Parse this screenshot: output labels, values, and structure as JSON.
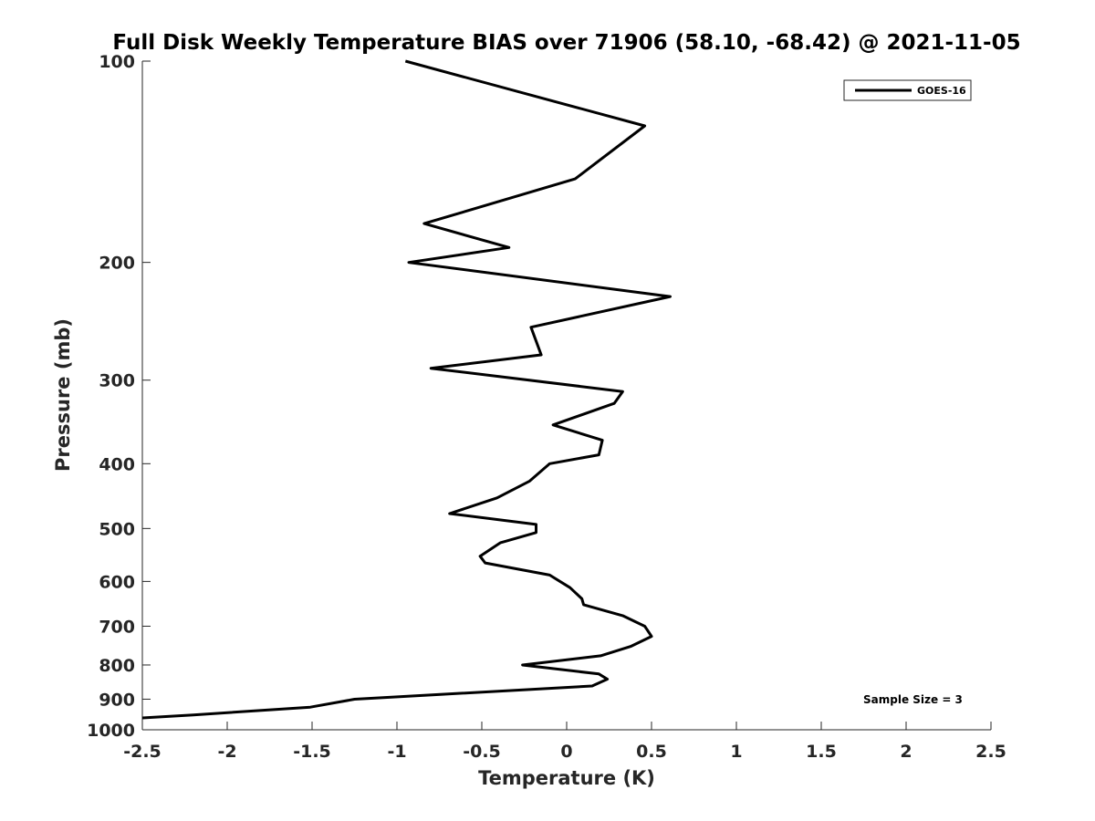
{
  "chart_data": {
    "type": "line",
    "title": "Full Disk Weekly Temperature BIAS over 71906 (58.10, -68.42) @ 2021-11-05",
    "xlabel": "Temperature (K)",
    "ylabel": "Pressure (mb)",
    "xlim": [
      -2.5,
      2.5
    ],
    "ylim": [
      100,
      1000
    ],
    "y_scale": "log",
    "y_direction": "reversed",
    "x_ticks": [
      -2.5,
      -2,
      -1.5,
      -1,
      -0.5,
      0,
      0.5,
      1,
      1.5,
      2,
      2.5
    ],
    "x_tick_labels": [
      "-2.5",
      "-2",
      "-1.5",
      "-1",
      "-0.5",
      "0",
      "0.5",
      "1",
      "1.5",
      "2",
      "2.5"
    ],
    "y_ticks": [
      100,
      200,
      300,
      400,
      500,
      600,
      700,
      800,
      900,
      1000
    ],
    "y_tick_labels": [
      "100",
      "200",
      "300",
      "400",
      "500",
      "600",
      "700",
      "800",
      "900",
      "1000"
    ],
    "grid": false,
    "legend_position": "top-right",
    "series": [
      {
        "name": "GOES-16",
        "color": "#000000",
        "points": [
          {
            "p": 100,
            "t": -0.95
          },
          {
            "p": 125,
            "t": 0.46
          },
          {
            "p": 150,
            "t": 0.05
          },
          {
            "p": 175,
            "t": -0.84
          },
          {
            "p": 190,
            "t": -0.34
          },
          {
            "p": 200,
            "t": -0.93
          },
          {
            "p": 225,
            "t": 0.61
          },
          {
            "p": 250,
            "t": -0.21
          },
          {
            "p": 275,
            "t": -0.15
          },
          {
            "p": 288,
            "t": -0.8
          },
          {
            "p": 312,
            "t": 0.33
          },
          {
            "p": 325,
            "t": 0.28
          },
          {
            "p": 350,
            "t": -0.08
          },
          {
            "p": 369,
            "t": 0.21
          },
          {
            "p": 388,
            "t": 0.19
          },
          {
            "p": 400,
            "t": -0.1
          },
          {
            "p": 425,
            "t": -0.22
          },
          {
            "p": 450,
            "t": -0.41
          },
          {
            "p": 475,
            "t": -0.69
          },
          {
            "p": 493,
            "t": -0.18
          },
          {
            "p": 507,
            "t": -0.18
          },
          {
            "p": 525,
            "t": -0.39
          },
          {
            "p": 550,
            "t": -0.51
          },
          {
            "p": 563,
            "t": -0.48
          },
          {
            "p": 587,
            "t": -0.1
          },
          {
            "p": 613,
            "t": 0.02
          },
          {
            "p": 637,
            "t": 0.09
          },
          {
            "p": 650,
            "t": 0.1
          },
          {
            "p": 675,
            "t": 0.33
          },
          {
            "p": 700,
            "t": 0.46
          },
          {
            "p": 725,
            "t": 0.5
          },
          {
            "p": 750,
            "t": 0.38
          },
          {
            "p": 775,
            "t": 0.2
          },
          {
            "p": 800,
            "t": -0.26
          },
          {
            "p": 825,
            "t": 0.19
          },
          {
            "p": 840,
            "t": 0.24
          },
          {
            "p": 860,
            "t": 0.15
          },
          {
            "p": 900,
            "t": -1.25
          },
          {
            "p": 925,
            "t": -1.51
          },
          {
            "p": 950,
            "t": -2.2
          },
          {
            "p": 960,
            "t": -2.5
          }
        ]
      }
    ],
    "annotations": [
      "Sample Size = 3"
    ]
  }
}
